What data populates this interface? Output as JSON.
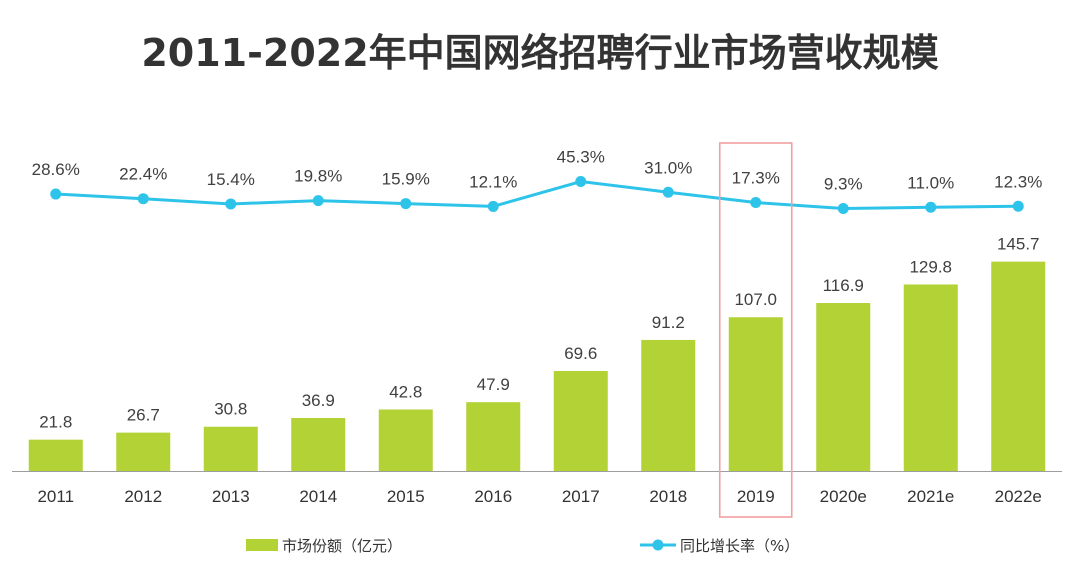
{
  "colors": {
    "bar": "#b2d235",
    "line": "#2ec4ea",
    "highlight": "#f0a0a0",
    "axis": "#9e9e9e"
  },
  "chart_data": {
    "type": "bar+line",
    "title": "2011-2022年中国网络招聘行业市场营收规模",
    "categories": [
      "2011",
      "2012",
      "2013",
      "2014",
      "2015",
      "2016",
      "2017",
      "2018",
      "2019",
      "2020e",
      "2021e",
      "2022e"
    ],
    "series": [
      {
        "name": "市场份额（亿元）",
        "type": "bar",
        "values": [
          21.8,
          26.7,
          30.8,
          36.9,
          42.8,
          47.9,
          69.6,
          91.2,
          107.0,
          116.9,
          129.8,
          145.7
        ],
        "labels": [
          "21.8",
          "26.7",
          "30.8",
          "36.9",
          "42.8",
          "47.9",
          "69.6",
          "91.2",
          "107.0",
          "116.9",
          "129.8",
          "145.7"
        ]
      },
      {
        "name": "同比增长率（%）",
        "type": "line",
        "values": [
          28.6,
          22.4,
          15.4,
          19.8,
          15.9,
          12.1,
          45.3,
          31.0,
          17.3,
          9.3,
          11.0,
          12.3
        ],
        "labels": [
          "28.6%",
          "22.4%",
          "15.4%",
          "19.8%",
          "15.9%",
          "12.1%",
          "45.3%",
          "31.0%",
          "17.3%",
          "9.3%",
          "11.0%",
          "12.3%"
        ]
      }
    ],
    "highlight_category": "2019",
    "legend_position": "bottom"
  }
}
